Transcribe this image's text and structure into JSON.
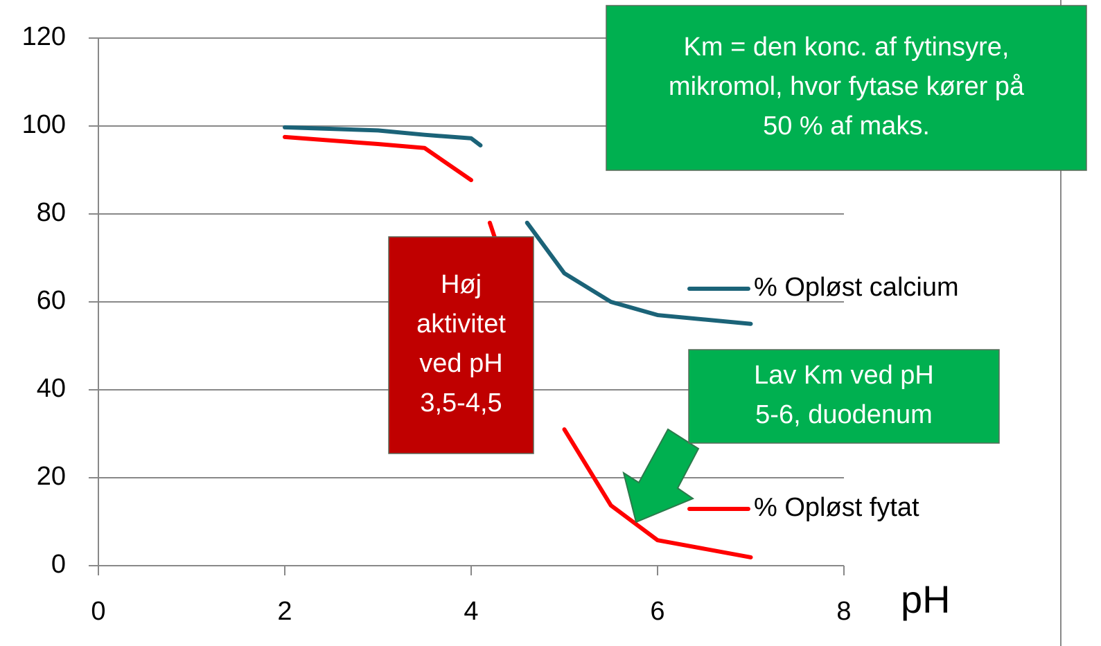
{
  "chart_data": {
    "type": "line",
    "x_label": "pH",
    "x": [
      2,
      3,
      3.5,
      4,
      4.1,
      4.2,
      4.5,
      4.6,
      5,
      5.5,
      6,
      7
    ],
    "series": [
      {
        "name": "% Opløst calcium",
        "color": "#1b6378",
        "values": [
          99.7,
          99,
          98,
          97.2,
          95.6,
          null,
          null,
          78,
          66.5,
          60,
          57,
          55
        ]
      },
      {
        "name": "% Opløst fytat",
        "color": "#ff0000",
        "values": [
          97.5,
          95.9,
          95,
          87.7,
          null,
          78,
          59,
          null,
          31,
          13.7,
          5.8,
          1.9
        ]
      }
    ],
    "xlim": [
      0,
      8
    ],
    "xticks": [
      0,
      2,
      4,
      6,
      8
    ],
    "ylim": [
      0,
      120
    ],
    "yticks": [
      0,
      20,
      40,
      60,
      80,
      100,
      120
    ],
    "grid": true,
    "annotations": [
      {
        "lines": [
          "Km = den konc. af fytinsyre,",
          "mikromol, hvor fytase kører på",
          "50 % af maks."
        ],
        "color": "#00b050"
      },
      {
        "lines": [
          "Høj",
          "aktivitet",
          "ved pH",
          "3,5-4,5"
        ],
        "color": "#c00000"
      },
      {
        "lines": [
          "Lav Km ved pH",
          "5-6, duodenum"
        ],
        "color": "#00b050"
      }
    ]
  }
}
